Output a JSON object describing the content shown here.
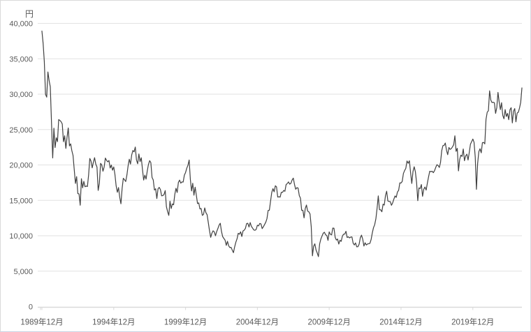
{
  "chart": {
    "unit_label": "円",
    "colors": {
      "line": "#404040",
      "gridline": "#e2e2e2",
      "axis": "#d9d9d9",
      "text": "#595959",
      "background": "#ffffff"
    },
    "y_axis": {
      "min": 0,
      "max": 40000,
      "step": 5000,
      "tick_labels": [
        "0",
        "5,000",
        "10,000",
        "15,000",
        "20,000",
        "25,000",
        "30,000",
        "35,000",
        "40,000"
      ]
    },
    "x_axis": {
      "tick_labels": [
        "1989年12月",
        "1994年12月",
        "1999年12月",
        "2004年12月",
        "2009年12月",
        "2014年12月",
        "2019年12月"
      ],
      "tick_month_indices": [
        0,
        60,
        120,
        180,
        240,
        300,
        360
      ]
    }
  },
  "chart_data": {
    "type": "line",
    "title": "",
    "xlabel": "",
    "ylabel": "円",
    "ylim": [
      0,
      40000
    ],
    "grid": "horizontal",
    "legend": "none",
    "x_start": "1989-12",
    "x_end": "2023-05",
    "x_frequency": "monthly",
    "x_tick_labels": [
      "1989年12月",
      "1994年12月",
      "1999年12月",
      "2004年12月",
      "2009年12月",
      "2014年12月",
      "2019年12月"
    ],
    "values": [
      38916,
      37189,
      34592,
      29980,
      29585,
      33131,
      31940,
      31035,
      25978,
      20984,
      25194,
      22455,
      23849,
      23293,
      26409,
      26292,
      26111,
      25790,
      23291,
      24121,
      22336,
      23916,
      25222,
      22687,
      22984,
      22023,
      21339,
      19346,
      17391,
      18348,
      15952,
      15910,
      14309,
      18061,
      16767,
      17684,
      16925,
      17024,
      16953,
      18591,
      20919,
      20552,
      19590,
      20380,
      21027,
      20106,
      19703,
      16406,
      17417,
      20229,
      19997,
      19112,
      19725,
      20974,
      20644,
      20449,
      20629,
      19564,
      19990,
      19260,
      19723,
      18650,
      17053,
      16140,
      16807,
      15437,
      14517,
      16677,
      18117,
      17913,
      17655,
      18580,
      19868,
      20813,
      20126,
      21407,
      22041,
      21846,
      22531,
      20693,
      20167,
      21556,
      20467,
      21020,
      19361,
      17869,
      18557,
      18003,
      19151,
      20069,
      20605,
      20331,
      18229,
      17888,
      16459,
      16636,
      15259,
      16628,
      16832,
      16527,
      15641,
      15671,
      15830,
      16379,
      14107,
      13406,
      12880,
      14884,
      13842,
      14499,
      14368,
      15837,
      16702,
      16112,
      17530,
      17861,
      17430,
      17605,
      17582,
      18558,
      18934,
      19539,
      19959,
      20700,
      17974,
      16332,
      17411,
      15727,
      16861,
      15747,
      14540,
      14648,
      13786,
      13844,
      12884,
      12999,
      13934,
      13262,
      12969,
      11861,
      10713,
      9775,
      10366,
      10697,
      10543,
      9998,
      10588,
      11025,
      11493,
      11764,
      10622,
      9878,
      9619,
      9383,
      8640,
      9216,
      8579,
      8339,
      8363,
      7973,
      7607,
      8425,
      9083,
      9563,
      10343,
      10219,
      10559,
      9895,
      10677,
      10784,
      11041,
      11715,
      11761,
      11236,
      11859,
      11326,
      11082,
      10824,
      10771,
      10899,
      11489,
      11387,
      11740,
      11669,
      11009,
      11277,
      11584,
      11900,
      12414,
      13574,
      13606,
      14872,
      16111,
      16649,
      16205,
      17060,
      16906,
      15467,
      15505,
      15457,
      16141,
      16128,
      16399,
      16274,
      17226,
      17383,
      17604,
      17288,
      17400,
      17876,
      18138,
      17249,
      16569,
      16786,
      16738,
      15681,
      15308,
      13592,
      13603,
      12526,
      13850,
      14339,
      13481,
      13377,
      13073,
      11260,
      7163,
      8512,
      8860,
      7994,
      7568,
      7055,
      8828,
      9523,
      9958,
      10357,
      10493,
      10133,
      10035,
      9346,
      10546,
      10198,
      10126,
      11090,
      11057,
      9769,
      9383,
      9537,
      8824,
      9369,
      9202,
      9937,
      10229,
      10237,
      10624,
      9755,
      9850,
      9694,
      9816,
      9833,
      8955,
      8700,
      8988,
      8435,
      8455,
      8803,
      9723,
      10084,
      9521,
      8543,
      9007,
      8695,
      8840,
      8870,
      8928,
      9446,
      10395,
      11139,
      11559,
      12398,
      13861,
      15627,
      13677,
      13668,
      13389,
      14456,
      14328,
      15662,
      16291,
      14914,
      14841,
      14828,
      14304,
      14632,
      15162,
      15621,
      15425,
      16174,
      16414,
      17460,
      17451,
      17674,
      18798,
      19207,
      19520,
      20563,
      20236,
      20585,
      18890,
      17388,
      19083,
      19747,
      19034,
      17518,
      14953,
      16759,
      16666,
      17235,
      15576,
      16569,
      16887,
      16450,
      17425,
      18308,
      19114,
      19041,
      19119,
      18909,
      19197,
      19651,
      20033,
      19925,
      19646,
      20356,
      22012,
      22725,
      22765,
      23098,
      22068,
      21454,
      22468,
      22202,
      22305,
      22554,
      22865,
      24120,
      21920,
      22351,
      19155,
      20773,
      21385,
      21206,
      22259,
      20601,
      21276,
      21522,
      20704,
      21756,
      22927,
      23294,
      23657,
      23205,
      21143,
      16553,
      20194,
      21878,
      22288,
      21710,
      23140,
      23185,
      22977,
      26434,
      27444,
      27663,
      30467,
      29179,
      28813,
      28860,
      28792,
      27284,
      28090,
      30248,
      28893,
      27822,
      28792,
      27002,
      26527,
      27821,
      26848,
      27280,
      26393,
      27801,
      28092,
      25937,
      27587,
      27968,
      26095,
      27327,
      27446,
      28041,
      28856,
      30887
    ]
  }
}
